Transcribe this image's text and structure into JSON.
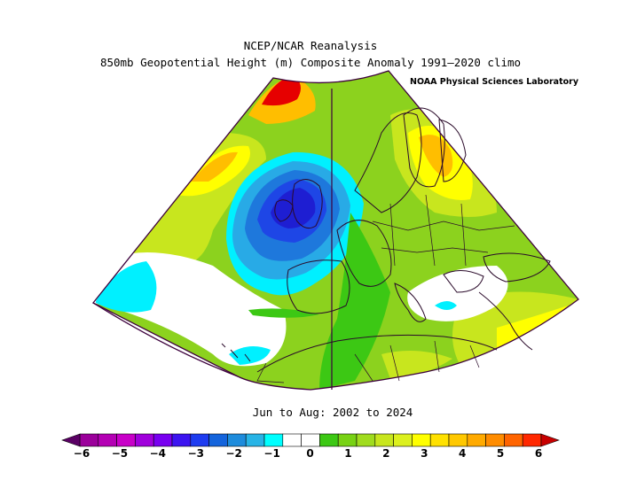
{
  "header": {
    "title_line1": "NCEP/NCAR Reanalysis",
    "title_line2": "850mb Geopotential Height (m) Composite Anomaly 1991–2020 climo",
    "lab": "NOAA Physical Sciences Laboratory"
  },
  "period": "Jun to Aug: 2002 to 2024",
  "colorbar": {
    "ticks": [
      "−6",
      "−5",
      "−4",
      "−3",
      "−2",
      "−1",
      "0",
      "1",
      "2",
      "3",
      "4",
      "5",
      "6"
    ],
    "colors": [
      "#9b009b",
      "#b400b4",
      "#c800c8",
      "#a000dc",
      "#7800f0",
      "#3c14f0",
      "#1e3cf0",
      "#1464dc",
      "#1e8cdc",
      "#28b4e6",
      "#00ffff",
      "#ffffff",
      "#ffffff",
      "#3cc814",
      "#78d214",
      "#a0dc1e",
      "#c8e61e",
      "#dcf01e",
      "#ffff00",
      "#ffe100",
      "#ffc800",
      "#ffaa00",
      "#ff8c00",
      "#ff6400",
      "#ff2800"
    ],
    "min_color": "#5a0064",
    "max_color": "#c80000"
  },
  "map": {
    "anomaly_colors": {
      "strong_negative": "#1e1ed2",
      "negative": "#1e46e6",
      "moderate_negative": "#1e78dc",
      "weak_negative": "#28aae6",
      "slight_negative": "#00f0ff",
      "neutral": "#ffffff",
      "slight_positive": "#3cc814",
      "weak_positive": "#8cd21e",
      "moderate_positive": "#c8e61e",
      "positive": "#ffff00",
      "strong_positive": "#ffbe00",
      "very_strong_positive": "#ff8c00",
      "extreme_positive": "#e60000"
    }
  }
}
